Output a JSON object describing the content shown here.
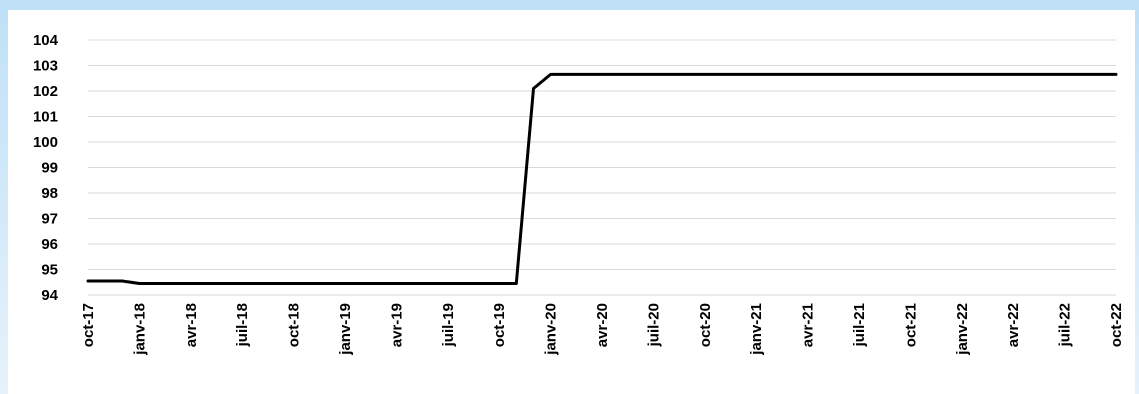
{
  "chart_data": {
    "type": "line",
    "title": "",
    "xlabel": "",
    "ylabel": "",
    "ylim": [
      94,
      104
    ],
    "y_ticks": [
      "94",
      "95",
      "96",
      "97",
      "98",
      "99",
      "100",
      "101",
      "102",
      "103",
      "104"
    ],
    "x_ticks": [
      "oct-17",
      "janv-18",
      "avr-18",
      "juil-18",
      "oct-18",
      "janv-19",
      "avr-19",
      "juil-19",
      "oct-19",
      "janv-20",
      "avr-20",
      "juil-20",
      "oct-20",
      "janv-21",
      "avr-21",
      "juil-21",
      "oct-21",
      "janv-22",
      "avr-22",
      "juil-22",
      "oct-22"
    ],
    "grid": true,
    "legend": "none",
    "series": [
      {
        "color": "#000000",
        "points": [
          {
            "x": "oct-17",
            "y": 94.55
          },
          {
            "x": "déc-17",
            "y": 94.55
          },
          {
            "x": "janv-18",
            "y": 94.45
          },
          {
            "x": "nov-19",
            "y": 94.45
          },
          {
            "x": "déc-19",
            "y": 102.1
          },
          {
            "x": "janv-20",
            "y": 102.65
          },
          {
            "x": "oct-22",
            "y": 102.65
          }
        ]
      }
    ]
  }
}
